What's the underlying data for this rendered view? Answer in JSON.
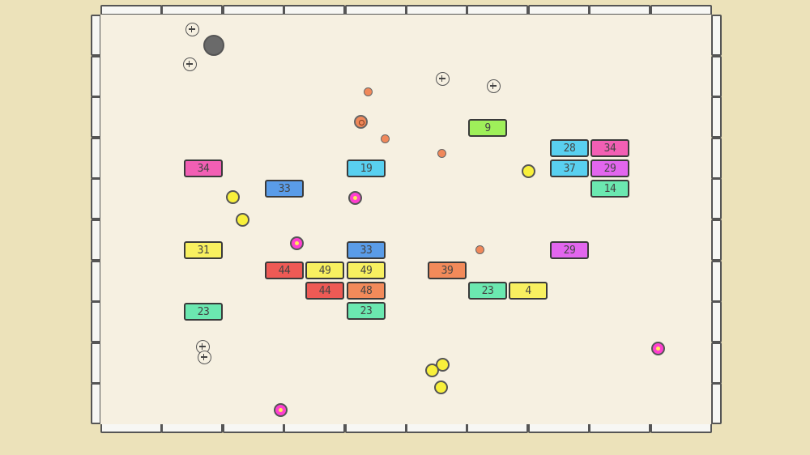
{
  "game": {
    "colors": {
      "background": "#ece2ba",
      "field": "#f6f0e1",
      "wall": "#f7f7f4",
      "pink": "#f25fb4",
      "blue": "#5a9ce8",
      "cyan": "#59d0f0",
      "green": "#9ff05a",
      "yellow": "#f8f060",
      "red": "#ee5a55",
      "orange": "#f28a5a",
      "mint": "#6be8b0",
      "magenta": "#e266ee"
    },
    "bricks": [
      {
        "label": "34",
        "color": "#f25fb4"
      },
      {
        "label": "33",
        "color": "#5a9ce8"
      },
      {
        "label": "19",
        "color": "#59d0f0"
      },
      {
        "label": "9",
        "color": "#9ff05a"
      },
      {
        "label": "28",
        "color": "#59d0f0"
      },
      {
        "label": "34",
        "color": "#f25fb4"
      },
      {
        "label": "37",
        "color": "#59d0f0"
      },
      {
        "label": "29",
        "color": "#e266ee"
      },
      {
        "label": "14",
        "color": "#6be8b0"
      },
      {
        "label": "31",
        "color": "#f8f060"
      },
      {
        "label": "33",
        "color": "#5a9ce8"
      },
      {
        "label": "44",
        "color": "#ee5a55"
      },
      {
        "label": "49",
        "color": "#f8f060"
      },
      {
        "label": "49",
        "color": "#f8f060"
      },
      {
        "label": "39",
        "color": "#f28a5a"
      },
      {
        "label": "29",
        "color": "#e266ee"
      },
      {
        "label": "44",
        "color": "#ee5a55"
      },
      {
        "label": "48",
        "color": "#f28a5a"
      },
      {
        "label": "23",
        "color": "#6be8b0"
      },
      {
        "label": "23",
        "color": "#6be8b0"
      },
      {
        "label": "4",
        "color": "#f8f060"
      },
      {
        "label": "23",
        "color": "#6be8b0"
      }
    ],
    "balls": [
      {
        "kind": "gray"
      },
      {
        "kind": "orange"
      },
      {
        "kind": "orange-ring"
      },
      {
        "kind": "orange"
      },
      {
        "kind": "orange"
      },
      {
        "kind": "orange"
      },
      {
        "kind": "yellow"
      },
      {
        "kind": "yellow"
      },
      {
        "kind": "yellow"
      },
      {
        "kind": "magenta"
      },
      {
        "kind": "magenta"
      },
      {
        "kind": "magenta"
      },
      {
        "kind": "magenta"
      },
      {
        "kind": "yellow"
      },
      {
        "kind": "yellow"
      },
      {
        "kind": "yellow"
      }
    ],
    "powerups": [
      {
        "icon": "plus-icon"
      },
      {
        "icon": "plus-icon"
      },
      {
        "icon": "plus-icon"
      },
      {
        "icon": "plus-icon"
      },
      {
        "icon": "plus-icon"
      },
      {
        "icon": "plus-icon"
      }
    ]
  }
}
